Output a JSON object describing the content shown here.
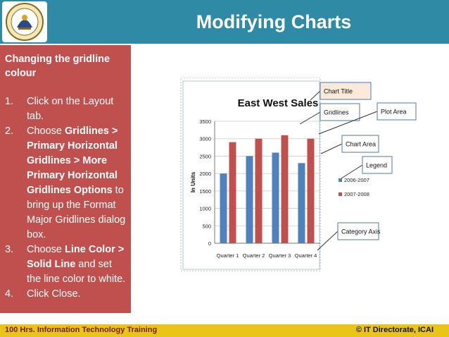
{
  "slide": {
    "title": "Modifying Charts",
    "accent_color": "#2f8aa5",
    "panel_color": "#c0504d",
    "footer_color": "#e8c516",
    "logo_icon": "icai-emblem"
  },
  "instructions": {
    "heading": "Changing the gridline colour",
    "steps": [
      {
        "num": "1.",
        "before": "Click on the Layout tab.",
        "bold": "",
        "after": ""
      },
      {
        "num": "2.",
        "before": "Choose ",
        "bold": "Gridlines > Primary Horizontal Gridlines > More Primary Horizontal Gridlines Options",
        "after": " to bring up the Format Major Gridlines dialog box."
      },
      {
        "num": "3.",
        "before": "Choose ",
        "bold": "Line Color > Solid Line",
        "after": " and set the line color to white."
      },
      {
        "num": "4.",
        "before": "Click Close.",
        "bold": "",
        "after": ""
      }
    ]
  },
  "callouts": {
    "chart_title": "Chart Title",
    "gridlines": "Gridlines",
    "plot_area": "Plot Area",
    "chart_area": "Chart Area",
    "legend": "Legend",
    "category_axis": "Category Axis"
  },
  "chart_data": {
    "type": "bar",
    "title": "East West Sales",
    "ylabel": "In Units",
    "xlabel": "",
    "categories": [
      "Quarter 1",
      "Quarter 2",
      "Quarter 3",
      "Quarter 4"
    ],
    "series": [
      {
        "name": "2006-2007",
        "values": [
          2000,
          2500,
          2600,
          2300
        ],
        "color": "#4f81bd"
      },
      {
        "name": "2007-2008",
        "values": [
          2900,
          3000,
          3100,
          3000
        ],
        "color": "#c0504d"
      }
    ],
    "ylim": [
      0,
      3500
    ],
    "yticks": [
      0,
      500,
      1000,
      1500,
      2000,
      2500,
      3000,
      3500
    ],
    "grid": true,
    "legend_position": "right"
  },
  "footer": {
    "left": "100 Hrs. Information Technology Training",
    "right": "© IT Directorate, ICAI"
  }
}
